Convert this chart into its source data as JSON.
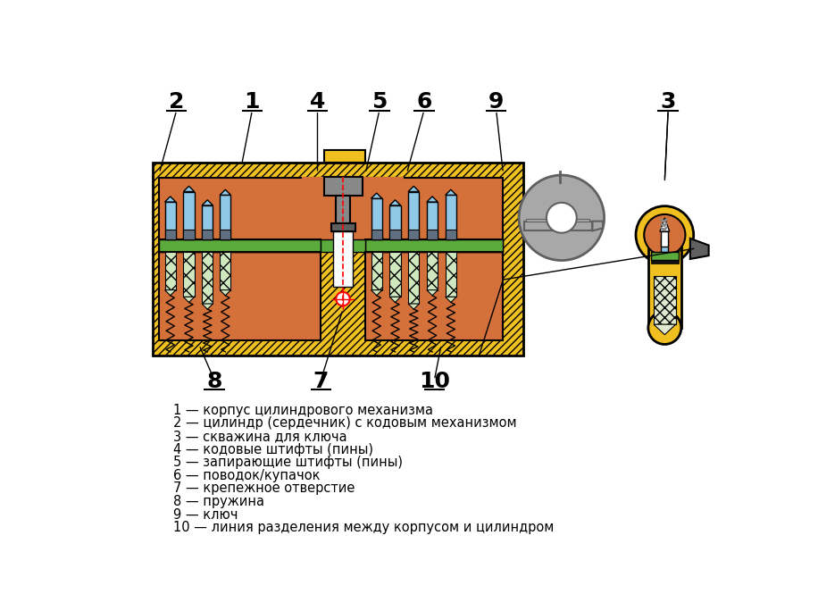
{
  "bg_color": "#ffffff",
  "legend_items": [
    "1 — корпус цилиндрового механизма",
    "2 — цилиндр (сердечник) с кодовым механизмом",
    "3 — скважина для ключа",
    "4 — кодовые штифты (пины)",
    "5 — запирающие штифты (пины)",
    "6 — поводок/купачок",
    "7 — крепежное отверстие",
    "8 — пружина",
    "9 — ключ",
    "10 — линия разделения между корпусом и цилиндром"
  ],
  "yellow": "#f0c020",
  "orange": "#d4703a",
  "blue_light": "#90c8e8",
  "green": "#5aaa3c",
  "gray_key": "#a8a8a8",
  "gray_dark": "#606060",
  "gray_medium": "#888888",
  "red_line": "#ff0000",
  "hatch_color": "#c8a010",
  "black": "#000000",
  "white": "#ffffff"
}
